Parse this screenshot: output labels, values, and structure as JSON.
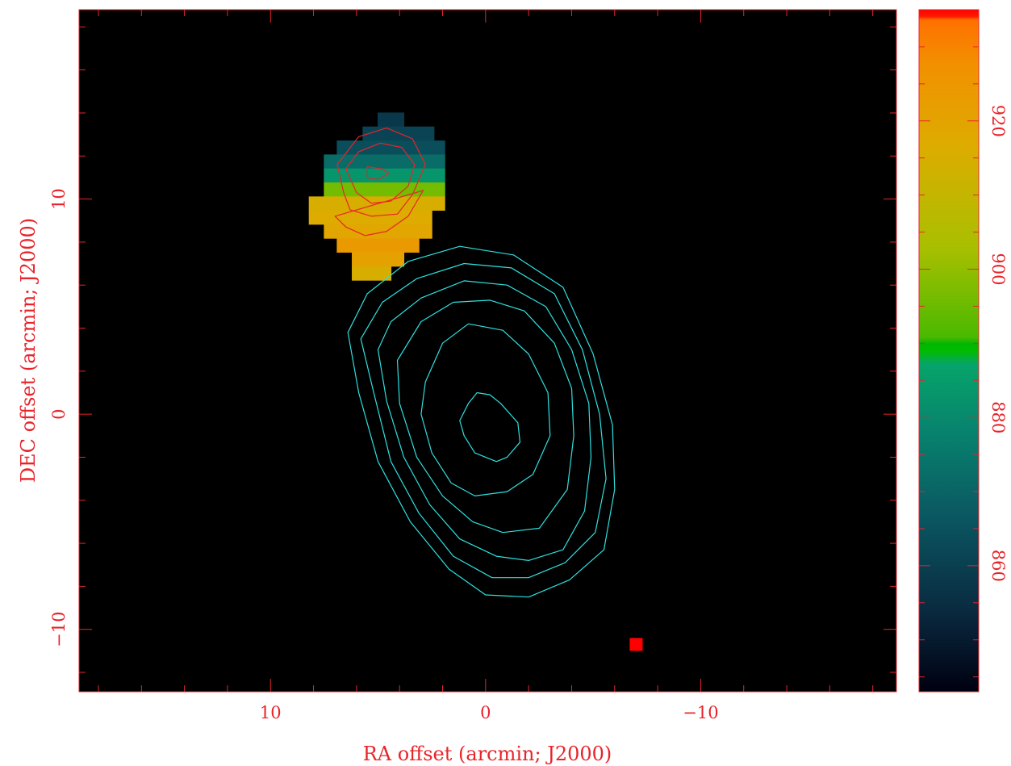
{
  "chart_data": {
    "type": "heatmap",
    "title": "",
    "xlabel": "RA offset (arcmin; J2000)",
    "ylabel": "DEC offset (arcmin; J2000)",
    "xlim": [
      18.9,
      -19.1
    ],
    "ylim": [
      -12.9,
      18.8
    ],
    "x_ticks": [
      10,
      0,
      -10
    ],
    "x_tick_labels": [
      "10",
      "0",
      "−10"
    ],
    "y_ticks": [
      -10,
      0,
      10
    ],
    "y_tick_labels": [
      "−10",
      "0",
      "10"
    ],
    "colorbar": {
      "range": [
        843,
        935
      ],
      "ticks": [
        860,
        880,
        900,
        920
      ],
      "tick_labels": [
        "860",
        "880",
        "900",
        "920"
      ]
    },
    "velocity_map": {
      "cell_size": 0.64,
      "rows": [
        {
          "y": 13.7,
          "x_from": 4.7,
          "x_to": 4.1,
          "value": 858
        },
        {
          "y": 13.05,
          "x_from": 5.4,
          "x_to": 2.7,
          "value": 861
        },
        {
          "y": 12.4,
          "x_from": 6.6,
          "x_to": 2.2,
          "value": 864
        },
        {
          "y": 11.75,
          "x_from": 7.2,
          "x_to": 2.2,
          "value": 872
        },
        {
          "y": 11.1,
          "x_from": 7.2,
          "x_to": 2.2,
          "value": 883
        },
        {
          "y": 10.45,
          "x_from": 7.2,
          "x_to": 2.2,
          "value": 896
        },
        {
          "y": 9.8,
          "x_from": 7.9,
          "x_to": 2.2,
          "value": 915
        },
        {
          "y": 9.15,
          "x_from": 7.9,
          "x_to": 2.8,
          "value": 917
        },
        {
          "y": 8.5,
          "x_from": 7.2,
          "x_to": 2.8,
          "value": 919
        },
        {
          "y": 7.85,
          "x_from": 6.6,
          "x_to": 3.4,
          "value": 924
        },
        {
          "y": 7.2,
          "x_from": 5.9,
          "x_to": 4.1,
          "value": 921
        },
        {
          "y": 6.55,
          "x_from": 5.9,
          "x_to": 4.7,
          "value": 915
        }
      ]
    },
    "beam_marker": {
      "x": -7.0,
      "y": -10.7,
      "color": "#ff0000"
    },
    "cyan_contours": [
      {
        "points": [
          [
            1.2,
            -0.3
          ],
          [
            1.0,
            -1.0
          ],
          [
            0.5,
            -1.8
          ],
          [
            -0.5,
            -2.2
          ],
          [
            -1.0,
            -2.0
          ],
          [
            -1.6,
            -1.3
          ],
          [
            -1.5,
            -0.4
          ],
          [
            -0.7,
            0.5
          ],
          [
            -0.2,
            0.9
          ],
          [
            0.4,
            1.0
          ],
          [
            0.8,
            0.5
          ]
        ]
      },
      {
        "points": [
          [
            2.8,
            1.5
          ],
          [
            3.0,
            0.0
          ],
          [
            2.5,
            -1.8
          ],
          [
            1.6,
            -3.2
          ],
          [
            0.5,
            -3.8
          ],
          [
            -1.0,
            -3.6
          ],
          [
            -2.2,
            -2.8
          ],
          [
            -3.0,
            -1.0
          ],
          [
            -2.9,
            1.0
          ],
          [
            -2.0,
            2.8
          ],
          [
            -0.8,
            3.9
          ],
          [
            0.8,
            4.2
          ],
          [
            2.0,
            3.3
          ]
        ]
      },
      {
        "points": [
          [
            4.1,
            2.5
          ],
          [
            4.0,
            0.5
          ],
          [
            3.2,
            -2.0
          ],
          [
            2.0,
            -3.8
          ],
          [
            0.6,
            -5.0
          ],
          [
            -0.8,
            -5.5
          ],
          [
            -2.5,
            -5.3
          ],
          [
            -3.8,
            -3.5
          ],
          [
            -4.1,
            -1.0
          ],
          [
            -4.0,
            1.2
          ],
          [
            -3.2,
            3.3
          ],
          [
            -1.8,
            4.8
          ],
          [
            -0.2,
            5.3
          ],
          [
            1.5,
            5.2
          ],
          [
            3.0,
            4.3
          ]
        ]
      },
      {
        "points": [
          [
            5.0,
            3.0
          ],
          [
            4.6,
            0.6
          ],
          [
            3.8,
            -2.0
          ],
          [
            2.6,
            -4.2
          ],
          [
            1.2,
            -5.8
          ],
          [
            -0.5,
            -6.6
          ],
          [
            -2.0,
            -6.8
          ],
          [
            -3.6,
            -6.3
          ],
          [
            -4.6,
            -4.5
          ],
          [
            -4.9,
            -2.0
          ],
          [
            -4.8,
            0.5
          ],
          [
            -4.0,
            3.0
          ],
          [
            -2.8,
            5.0
          ],
          [
            -1.0,
            6.0
          ],
          [
            1.0,
            6.2
          ],
          [
            3.0,
            5.4
          ],
          [
            4.4,
            4.3
          ]
        ]
      },
      {
        "points": [
          [
            5.8,
            3.5
          ],
          [
            5.2,
            1.0
          ],
          [
            4.4,
            -2.2
          ],
          [
            3.1,
            -4.6
          ],
          [
            1.5,
            -6.6
          ],
          [
            -0.3,
            -7.6
          ],
          [
            -2.0,
            -7.6
          ],
          [
            -3.7,
            -6.9
          ],
          [
            -5.1,
            -5.5
          ],
          [
            -5.6,
            -3.0
          ],
          [
            -5.3,
            0.0
          ],
          [
            -4.5,
            3.0
          ],
          [
            -3.2,
            5.6
          ],
          [
            -1.2,
            6.8
          ],
          [
            1.0,
            7.0
          ],
          [
            3.2,
            6.3
          ],
          [
            4.8,
            5.2
          ]
        ]
      },
      {
        "points": [
          [
            6.4,
            3.8
          ],
          [
            5.9,
            1.0
          ],
          [
            5.0,
            -2.2
          ],
          [
            3.5,
            -5.0
          ],
          [
            1.7,
            -7.2
          ],
          [
            0.0,
            -8.4
          ],
          [
            -2.0,
            -8.5
          ],
          [
            -3.9,
            -7.7
          ],
          [
            -5.5,
            -6.3
          ],
          [
            -6.0,
            -3.5
          ],
          [
            -5.9,
            -0.5
          ],
          [
            -5.0,
            2.8
          ],
          [
            -3.6,
            5.9
          ],
          [
            -1.3,
            7.4
          ],
          [
            1.2,
            7.8
          ],
          [
            3.6,
            7.1
          ],
          [
            5.5,
            5.6
          ]
        ]
      }
    ],
    "red_contours": [
      {
        "points": [
          [
            5.5,
            11.5
          ],
          [
            5.5,
            11.0
          ],
          [
            5.0,
            10.9
          ],
          [
            4.5,
            11.2
          ],
          [
            4.8,
            11.4
          ]
        ]
      },
      {
        "points": [
          [
            6.5,
            11.4
          ],
          [
            6.0,
            10.3
          ],
          [
            5.3,
            9.8
          ],
          [
            4.4,
            9.9
          ],
          [
            3.6,
            10.6
          ],
          [
            3.3,
            11.6
          ],
          [
            3.9,
            12.4
          ],
          [
            4.9,
            12.6
          ],
          [
            5.9,
            12.2
          ]
        ]
      },
      {
        "points": [
          [
            6.9,
            11.6
          ],
          [
            6.6,
            10.3
          ],
          [
            6.3,
            9.5
          ],
          [
            5.3,
            9.2
          ],
          [
            4.1,
            9.3
          ],
          [
            3.4,
            10.2
          ],
          [
            2.8,
            11.6
          ],
          [
            3.4,
            12.8
          ],
          [
            4.6,
            13.3
          ],
          [
            5.9,
            12.9
          ]
        ]
      },
      {
        "points": [
          [
            7.0,
            9.2
          ],
          [
            6.5,
            8.7
          ],
          [
            5.6,
            8.3
          ],
          [
            4.6,
            8.5
          ],
          [
            3.6,
            9.2
          ],
          [
            2.9,
            10.4
          ]
        ]
      }
    ]
  }
}
